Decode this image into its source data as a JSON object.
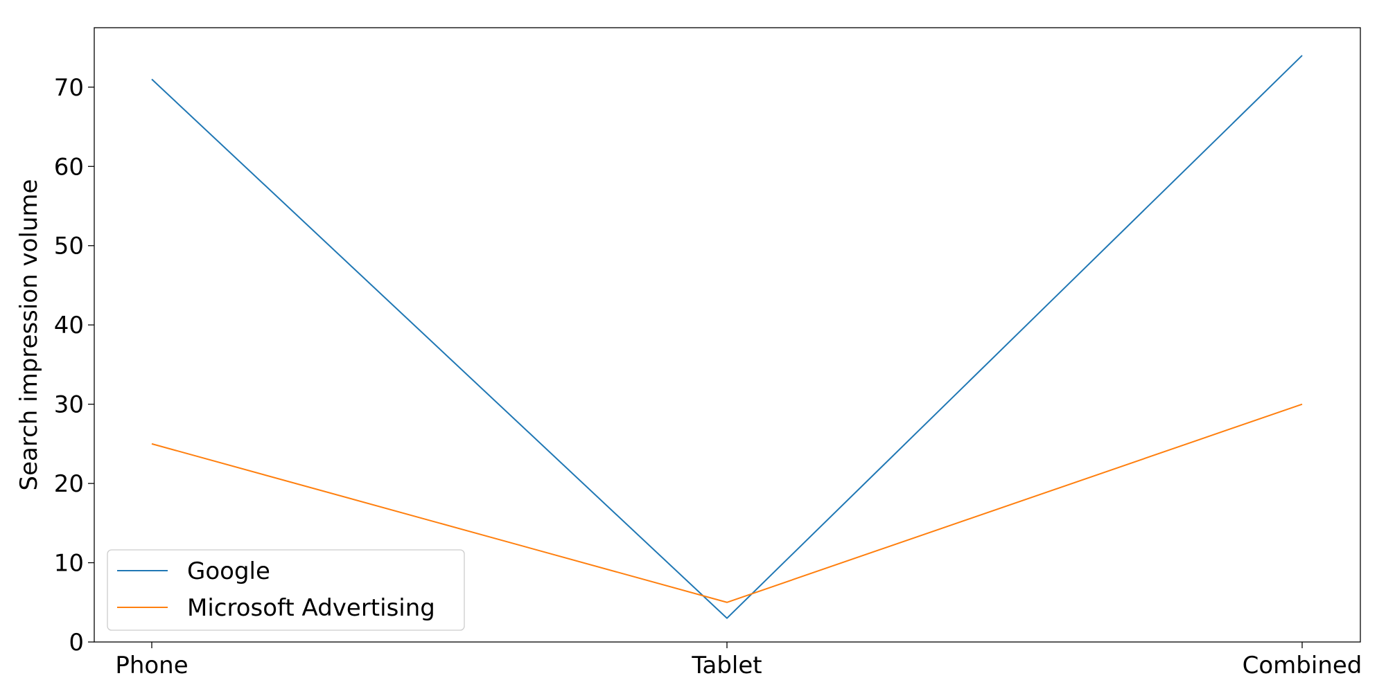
{
  "chart_data": {
    "type": "line",
    "title": "",
    "xlabel": "",
    "ylabel": "Search impression volume",
    "categories": [
      "Phone",
      "Tablet",
      "Combined"
    ],
    "series": [
      {
        "name": "Google",
        "values": [
          71,
          3,
          74
        ],
        "color": "#1f77b4"
      },
      {
        "name": "Microsoft Advertising",
        "values": [
          25,
          5,
          30
        ],
        "color": "#ff7f0e"
      }
    ],
    "ylim": [
      0,
      77.5
    ],
    "yticks": [
      0,
      10,
      20,
      30,
      40,
      50,
      60,
      70
    ],
    "grid": false,
    "legend_position": "lower-left"
  }
}
